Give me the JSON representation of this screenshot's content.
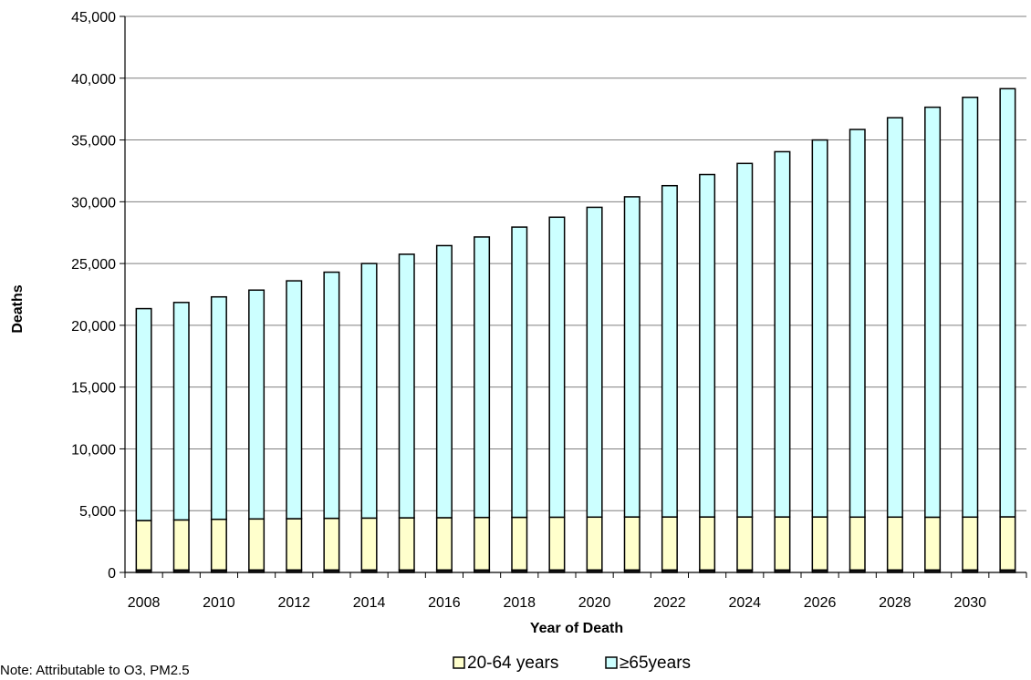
{
  "chart_data": {
    "type": "bar",
    "stacked": true,
    "xlabel": "Year of Death",
    "ylabel": "Deaths",
    "ylim": [
      0,
      45000
    ],
    "yticks": [
      0,
      5000,
      10000,
      15000,
      20000,
      25000,
      30000,
      35000,
      40000,
      45000
    ],
    "ytick_labels": [
      "0",
      "5,000",
      "10,000",
      "15,000",
      "20,000",
      "25,000",
      "30,000",
      "35,000",
      "40,000",
      "45,000"
    ],
    "categories": [
      2008,
      2009,
      2010,
      2011,
      2012,
      2013,
      2014,
      2015,
      2016,
      2017,
      2018,
      2019,
      2020,
      2021,
      2022,
      2023,
      2024,
      2025,
      2026,
      2027,
      2028,
      2029,
      2030,
      2031
    ],
    "xtick_labels": [
      "2008",
      "2010",
      "2012",
      "2014",
      "2016",
      "2018",
      "2020",
      "2022",
      "2024",
      "2026",
      "2028",
      "2030"
    ],
    "grid": "horizontal",
    "legend_position": "bottom",
    "series": [
      {
        "name": "",
        "color": "#1a1a1a",
        "values": [
          200,
          200,
          200,
          200,
          200,
          200,
          200,
          200,
          200,
          200,
          200,
          200,
          200,
          200,
          200,
          200,
          200,
          200,
          200,
          200,
          200,
          200,
          200,
          200
        ]
      },
      {
        "name": "20-64 years",
        "color": "#ffffcc",
        "values": [
          4000,
          4050,
          4100,
          4130,
          4150,
          4180,
          4200,
          4220,
          4230,
          4250,
          4260,
          4270,
          4280,
          4290,
          4290,
          4290,
          4290,
          4290,
          4290,
          4280,
          4280,
          4270,
          4280,
          4300
        ]
      },
      {
        "name": "≥65years",
        "color": "#ccffff",
        "values": [
          17150,
          17600,
          18000,
          18520,
          19250,
          19920,
          20600,
          21330,
          22020,
          22700,
          23490,
          24280,
          25070,
          25910,
          26810,
          27710,
          28610,
          29560,
          30510,
          31370,
          32320,
          33180,
          33970,
          34650
        ]
      }
    ],
    "note": "Note: Attributable to O3, PM2.5"
  }
}
